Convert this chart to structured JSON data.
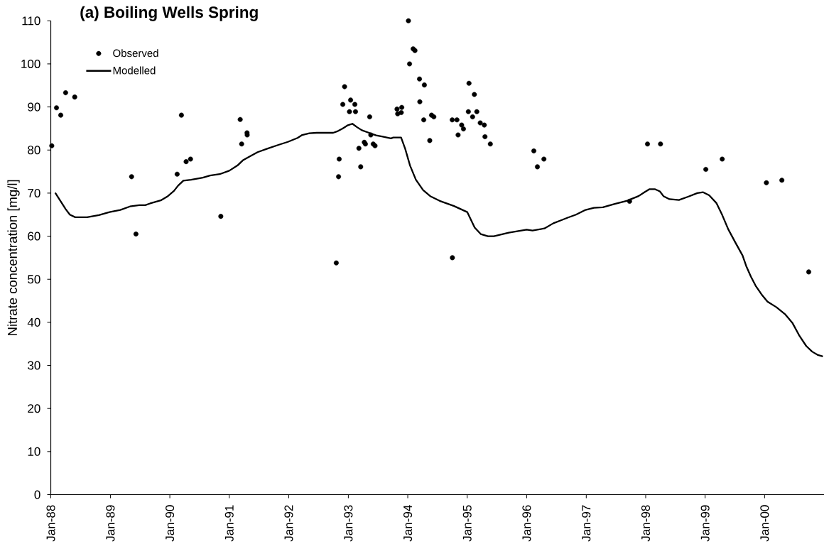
{
  "chart_data": {
    "type": "line",
    "title": "(a) Boiling Wells Spring",
    "ylabel": "Nitrate concentration [mg/l]",
    "series": [
      {
        "name": "Observed",
        "type": "scatter",
        "color": "#000000",
        "marker": "circle",
        "x": [
          "1988-01-07",
          "1988-02-05",
          "1988-03-02",
          "1988-04-01",
          "1988-05-27",
          "1989-05-11",
          "1989-06-07",
          "1990-02-15",
          "1990-03-13",
          "1990-04-11",
          "1990-05-08",
          "1990-11-10",
          "1991-03-09",
          "1991-03-18",
          "1991-04-20",
          "1991-04-21",
          "1992-10-19",
          "1992-11-02",
          "1992-11-06",
          "1992-11-28",
          "1992-12-09",
          "1993-01-08",
          "1993-01-15",
          "1993-02-10",
          "1993-02-14",
          "1993-03-07",
          "1993-03-18",
          "1993-04-09",
          "1993-04-16",
          "1993-05-12",
          "1993-05-19",
          "1993-06-03",
          "1993-06-14",
          "1993-10-27",
          "1993-10-31",
          "1993-11-22",
          "1993-11-25",
          "1994-01-05",
          "1994-01-12",
          "1994-02-03",
          "1994-02-14",
          "1994-03-14",
          "1994-03-16",
          "1994-04-09",
          "1994-04-13",
          "1994-05-16",
          "1994-05-27",
          "1994-06-10",
          "1994-10-01",
          "1994-10-02",
          "1994-10-30",
          "1994-11-06",
          "1994-11-28",
          "1994-12-09",
          "1995-01-08",
          "1995-01-12",
          "1995-02-03",
          "1995-02-14",
          "1995-03-01",
          "1995-03-22",
          "1995-04-16",
          "1995-04-20",
          "1995-05-23",
          "1996-02-14",
          "1996-03-07",
          "1996-04-16",
          "1997-09-24",
          "1998-01-12",
          "1998-04-02",
          "1999-01-05",
          "1999-04-16",
          "2000-01-12",
          "2000-04-16",
          "2000-09-28"
        ],
        "values": [
          81.0,
          89.8,
          88.1,
          93.3,
          92.3,
          73.8,
          60.5,
          74.4,
          88.1,
          77.3,
          77.9,
          64.6,
          87.1,
          81.4,
          84.0,
          83.5,
          53.8,
          73.8,
          77.9,
          90.6,
          94.7,
          88.9,
          91.6,
          90.6,
          88.9,
          80.4,
          76.1,
          81.8,
          81.4,
          87.7,
          83.5,
          81.4,
          81.0,
          89.5,
          88.4,
          88.7,
          89.9,
          110.0,
          100.0,
          103.5,
          103.1,
          96.5,
          91.2,
          87.0,
          95.1,
          82.2,
          88.1,
          87.7,
          87.0,
          55.0,
          87.0,
          83.5,
          85.8,
          84.9,
          88.9,
          95.5,
          87.7,
          92.9,
          88.9,
          86.3,
          85.8,
          83.1,
          81.4,
          79.8,
          76.1,
          77.9,
          68.1,
          81.4,
          81.4,
          75.5,
          77.9,
          72.4,
          73.0,
          51.7
        ]
      },
      {
        "name": "Modelled",
        "color": "#000000",
        "line_style": "solid",
        "x": [
          "1988-01-28",
          "1988-04-01",
          "1988-04-27",
          "1988-05-30",
          "1988-08-11",
          "1988-10-23",
          "1988-12-27",
          "1989-03-03",
          "1989-05-01",
          "1989-06-28",
          "1989-08-03",
          "1989-09-02",
          "1989-11-06",
          "1989-12-20",
          "1990-01-26",
          "1990-02-20",
          "1990-03-25",
          "1990-05-11",
          "1990-07-23",
          "1990-09-05",
          "1990-11-03",
          "1991-01-01",
          "1991-02-20",
          "1991-03-25",
          "1991-05-11",
          "1991-06-24",
          "1991-08-22",
          "1991-10-30",
          "1991-12-27",
          "1992-02-24",
          "1992-03-24",
          "1992-05-07",
          "1992-06-20",
          "1992-09-30",
          "1992-10-29",
          "1992-11-27",
          "1992-12-26",
          "1993-01-26",
          "1993-02-24",
          "1993-03-25",
          "1993-05-08",
          "1993-06-21",
          "1993-07-31",
          "1993-09-20",
          "1993-10-04",
          "1993-11-21",
          "1993-12-16",
          "1994-01-15",
          "1994-02-20",
          "1994-04-05",
          "1994-05-19",
          "1994-07-16",
          "1994-10-12",
          "1995-01-01",
          "1995-02-16",
          "1995-03-25",
          "1995-05-08",
          "1995-06-14",
          "1995-09-13",
          "1996-01-01",
          "1996-02-06",
          "1996-04-19",
          "1996-06-13",
          "1996-08-07",
          "1996-09-09",
          "1996-10-30",
          "1996-12-28",
          "1997-02-17",
          "1997-04-13",
          "1997-06-25",
          "1997-09-06",
          "1997-11-18",
          "1997-12-24",
          "1998-01-23",
          "1998-02-28",
          "1998-03-29",
          "1998-04-20",
          "1998-05-27",
          "1998-07-24",
          "1998-09-21",
          "1998-11-14",
          "1998-12-20",
          "1999-01-26",
          "1999-03-11",
          "1999-04-16",
          "1999-05-23",
          "1999-07-06",
          "1999-08-19",
          "1999-09-10",
          "1999-10-09",
          "1999-11-07",
          "1999-12-13",
          "2000-01-19",
          "2000-03-14",
          "2000-05-08",
          "2000-06-21",
          "2000-07-31",
          "2000-09-13",
          "2000-10-19",
          "2000-11-24",
          "2000-12-24"
        ],
        "values": [
          70.1,
          66.3,
          65.0,
          64.4,
          64.4,
          64.9,
          65.6,
          66.1,
          66.9,
          67.2,
          67.2,
          67.6,
          68.3,
          69.3,
          70.5,
          71.7,
          72.9,
          73.1,
          73.6,
          74.1,
          74.4,
          75.2,
          76.4,
          77.6,
          78.6,
          79.5,
          80.3,
          81.2,
          81.9,
          82.8,
          83.5,
          83.9,
          84.0,
          84.0,
          84.4,
          85.0,
          85.7,
          86.1,
          85.3,
          84.6,
          84.0,
          83.4,
          83.1,
          82.7,
          82.9,
          82.9,
          80.3,
          76.4,
          73.1,
          70.7,
          69.3,
          68.2,
          67.0,
          65.6,
          62.0,
          60.5,
          60.0,
          60.0,
          60.8,
          61.5,
          61.3,
          61.8,
          63.0,
          63.8,
          64.3,
          65.0,
          66.1,
          66.6,
          66.7,
          67.5,
          68.2,
          69.3,
          70.2,
          70.9,
          70.9,
          70.4,
          69.3,
          68.6,
          68.4,
          69.2,
          70.0,
          70.2,
          69.5,
          67.7,
          64.9,
          61.6,
          58.5,
          55.5,
          53.1,
          50.6,
          48.5,
          46.5,
          44.8,
          43.5,
          41.8,
          39.8,
          37.0,
          34.5,
          33.2,
          32.4,
          32.1
        ]
      }
    ],
    "xlim": [
      "1988-01-01",
      "2000-12-31"
    ],
    "xticks": [
      {
        "value": "1988-01-01",
        "label": "Jan-88"
      },
      {
        "value": "1989-01-01",
        "label": "Jan-89"
      },
      {
        "value": "1990-01-01",
        "label": "Jan-90"
      },
      {
        "value": "1991-01-01",
        "label": "Jan-91"
      },
      {
        "value": "1992-01-01",
        "label": "Jan-92"
      },
      {
        "value": "1993-01-01",
        "label": "Jan-93"
      },
      {
        "value": "1994-01-01",
        "label": "Jan-94"
      },
      {
        "value": "1995-01-01",
        "label": "Jan-95"
      },
      {
        "value": "1996-01-01",
        "label": "Jan-96"
      },
      {
        "value": "1997-01-01",
        "label": "Jan-97"
      },
      {
        "value": "1998-01-01",
        "label": "Jan-98"
      },
      {
        "value": "1999-01-01",
        "label": "Jan-99"
      },
      {
        "value": "2000-01-01",
        "label": "Jan-00"
      }
    ],
    "ylim": [
      0,
      110
    ],
    "yticks": [
      0,
      10,
      20,
      30,
      40,
      50,
      60,
      70,
      80,
      90,
      100,
      110
    ],
    "legend": "top left"
  }
}
